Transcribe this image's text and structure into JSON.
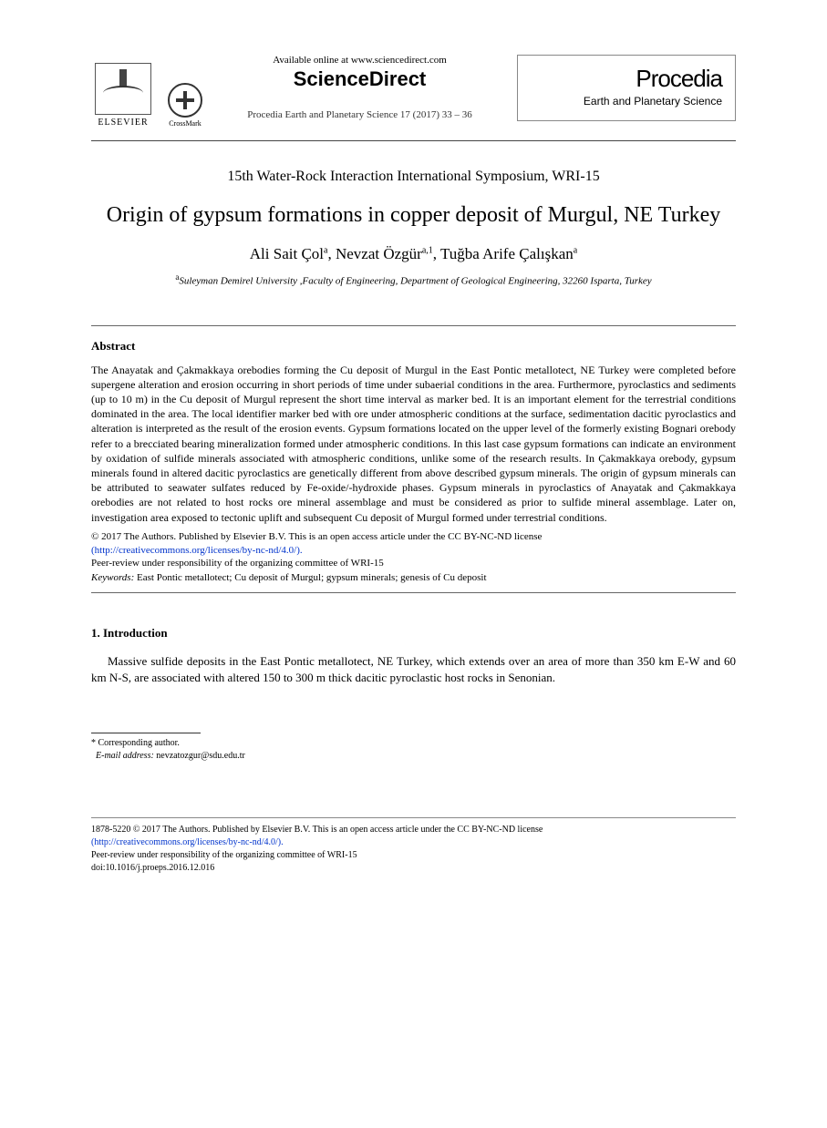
{
  "header": {
    "publisher_name": "ELSEVIER",
    "crossmark_label": "CrossMark",
    "available_online": "Available online at www.sciencedirect.com",
    "platform": "ScienceDirect",
    "citation": "Procedia Earth and Planetary Science 17 (2017) 33 – 36",
    "journal_brand": "Procedia",
    "journal_subtitle": "Earth and Planetary Science"
  },
  "conference": "15th Water-Rock Interaction International Symposium, WRI-15",
  "title": "Origin of gypsum formations in copper deposit of Murgul, NE Turkey",
  "authors_html": "Ali Sait Çol<sup>a</sup>, Nevzat Özgür<sup>a,1</sup>, Tuğba Arife Çalışkan<sup>a</sup>",
  "affiliation_html": "<sup>a</sup>Suleyman Demirel University ,Faculty of Engineering, Department of Geological Engineering, 32260 Isparta, Turkey",
  "abstract": {
    "heading": "Abstract",
    "text": "The Anayatak and Çakmakkaya orebodies forming the Cu deposit of Murgul in the East Pontic metallotect, NE Turkey were completed before supergene alteration and erosion occurring in short periods of time under subaerial conditions in the area. Furthermore, pyroclastics and sediments (up to 10 m) in the Cu deposit of Murgul represent the short time interval as marker bed. It is an important element for the terrestrial conditions dominated in the area. The local identifier marker bed with ore under atmospheric conditions at the surface, sedimentation dacitic pyroclastics and alteration is interpreted as the result of the erosion events. Gypsum formations located on the upper level of the formerly existing Bognari orebody refer to a brecciated bearing mineralization formed under atmospheric conditions. In this last case gypsum formations can indicate an environment by oxidation of sulfide minerals associated with atmospheric conditions, unlike some of the research results. In Çakmakkaya orebody, gypsum minerals found in altered dacitic pyroclastics are genetically different from above described gypsum minerals. The origin of gypsum minerals can be attributed to seawater sulfates reduced by Fe-oxide/-hydroxide phases. Gypsum minerals in pyroclastics of Anayatak and Çakmakkaya orebodies are not related to host rocks ore mineral assemblage and must be considered as prior to sulfide mineral assemblage. Later on, investigation area exposed to tectonic uplift and subsequent Cu deposit of Murgul formed under terrestrial conditions.",
    "copyright_line1": "© 2017 The Authors. Published by Elsevier B.V. This is an open access article under the CC BY-NC-ND license",
    "license_url_display": "(http://creativecommons.org/licenses/by-nc-nd/4.0/).",
    "peer_review": "Peer-review under responsibility of the organizing committee of WRI-15",
    "keywords_label": "Keywords:",
    "keywords_text": " East Pontic metallotect; Cu deposit of Murgul; gypsum minerals; genesis of Cu deposit"
  },
  "introduction": {
    "heading": "1. Introduction",
    "paragraph": "Massive sulfide deposits in the East Pontic metallotect, NE Turkey, which extends over an area of more than 350 km E-W and 60 km N-S, are associated with altered 150 to 300 m thick dacitic pyroclastic host rocks in Senonian."
  },
  "footnote": {
    "marker": "*",
    "corresponding": " Corresponding author.",
    "email_label": "E-mail address:",
    "email": " nevzatozgur@sdu.edu.tr"
  },
  "footer": {
    "issn_copy": "1878-5220 © 2017 The Authors. Published by Elsevier B.V. This is an open access article under the CC BY-NC-ND license",
    "license_url_display": "(http://creativecommons.org/licenses/by-nc-nd/4.0/).",
    "peer_review": "Peer-review under responsibility of the organizing committee of WRI-15",
    "doi": "doi:10.1016/j.proeps.2016.12.016"
  },
  "style": {
    "link_color": "#0033cc",
    "text_color": "#000000",
    "rule_color": "#666666"
  }
}
